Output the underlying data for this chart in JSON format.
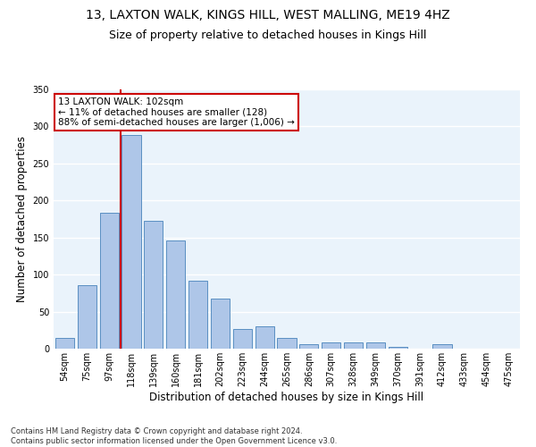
{
  "title": "13, LAXTON WALK, KINGS HILL, WEST MALLING, ME19 4HZ",
  "subtitle": "Size of property relative to detached houses in Kings Hill",
  "xlabel": "Distribution of detached houses by size in Kings Hill",
  "ylabel": "Number of detached properties",
  "categories": [
    "54sqm",
    "75sqm",
    "97sqm",
    "118sqm",
    "139sqm",
    "160sqm",
    "181sqm",
    "202sqm",
    "223sqm",
    "244sqm",
    "265sqm",
    "286sqm",
    "307sqm",
    "328sqm",
    "349sqm",
    "370sqm",
    "391sqm",
    "412sqm",
    "433sqm",
    "454sqm",
    "475sqm"
  ],
  "values": [
    14,
    86,
    184,
    288,
    172,
    146,
    92,
    68,
    27,
    30,
    15,
    6,
    8,
    8,
    9,
    3,
    0,
    6,
    0,
    0,
    0
  ],
  "bar_color": "#aec6e8",
  "bar_edge_color": "#5a8fc2",
  "vline_x": 2.5,
  "vline_color": "#cc0000",
  "annotation_text": "13 LAXTON WALK: 102sqm\n← 11% of detached houses are smaller (128)\n88% of semi-detached houses are larger (1,006) →",
  "annotation_box_color": "#ffffff",
  "annotation_box_edge_color": "#cc0000",
  "bg_color": "#eaf3fb",
  "grid_color": "#ffffff",
  "footnote": "Contains HM Land Registry data © Crown copyright and database right 2024.\nContains public sector information licensed under the Open Government Licence v3.0.",
  "ylim": [
    0,
    350
  ],
  "title_fontsize": 10,
  "subtitle_fontsize": 9,
  "ylabel_fontsize": 8.5,
  "xlabel_fontsize": 8.5,
  "annot_fontsize": 7.5,
  "footnote_fontsize": 6,
  "tick_fontsize": 7
}
